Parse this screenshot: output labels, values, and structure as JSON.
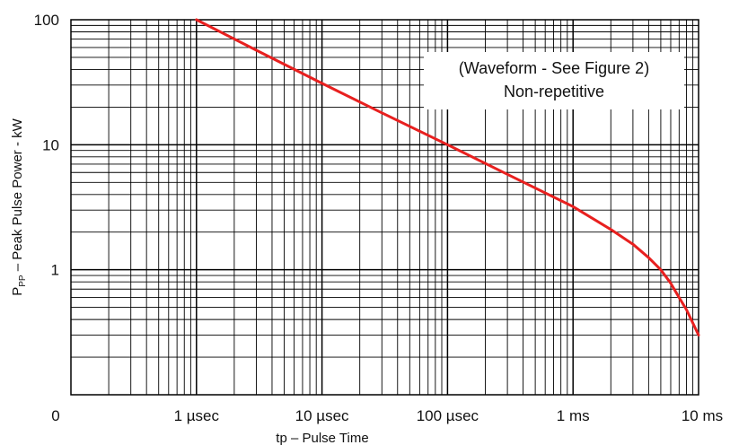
{
  "chart_data": {
    "type": "line",
    "title": "",
    "xlabel": "tp – Pulse Time",
    "ylabel_main": "P",
    "ylabel_sub": "PP",
    "ylabel_rest": " – Peak Pulse Power - kW",
    "x_scale": "log",
    "y_scale": "log",
    "x_unit": "seconds",
    "y_unit": "kW",
    "xlim": [
      1e-07,
      0.01
    ],
    "ylim": [
      0.1,
      100
    ],
    "grid": true,
    "x_tick_labels": [
      {
        "value": 1e-07,
        "label": "0"
      },
      {
        "value": 1e-06,
        "label": "1 µsec"
      },
      {
        "value": 1e-05,
        "label": "10 µsec"
      },
      {
        "value": 0.0001,
        "label": "100 µsec"
      },
      {
        "value": 0.001,
        "label": "1 ms"
      },
      {
        "value": 0.01,
        "label": "10 ms"
      }
    ],
    "y_tick_labels": [
      {
        "value": 100,
        "label": "100"
      },
      {
        "value": 10,
        "label": "10"
      },
      {
        "value": 1,
        "label": "1"
      }
    ],
    "annotation": {
      "lines": [
        "(Waveform - See Figure 2)",
        "Non-repetitive"
      ],
      "placement": "top-right"
    },
    "series": [
      {
        "color": "#e8201f",
        "x": [
          1e-06,
          3e-06,
          1e-05,
          3e-05,
          0.0001,
          0.0003,
          0.001,
          0.002,
          0.003,
          0.004,
          0.005,
          0.006,
          0.007,
          0.008,
          0.01
        ],
        "y": [
          100,
          57,
          31,
          18,
          10,
          5.8,
          3.2,
          2.1,
          1.6,
          1.25,
          1.0,
          0.78,
          0.6,
          0.48,
          0.3
        ]
      }
    ]
  }
}
